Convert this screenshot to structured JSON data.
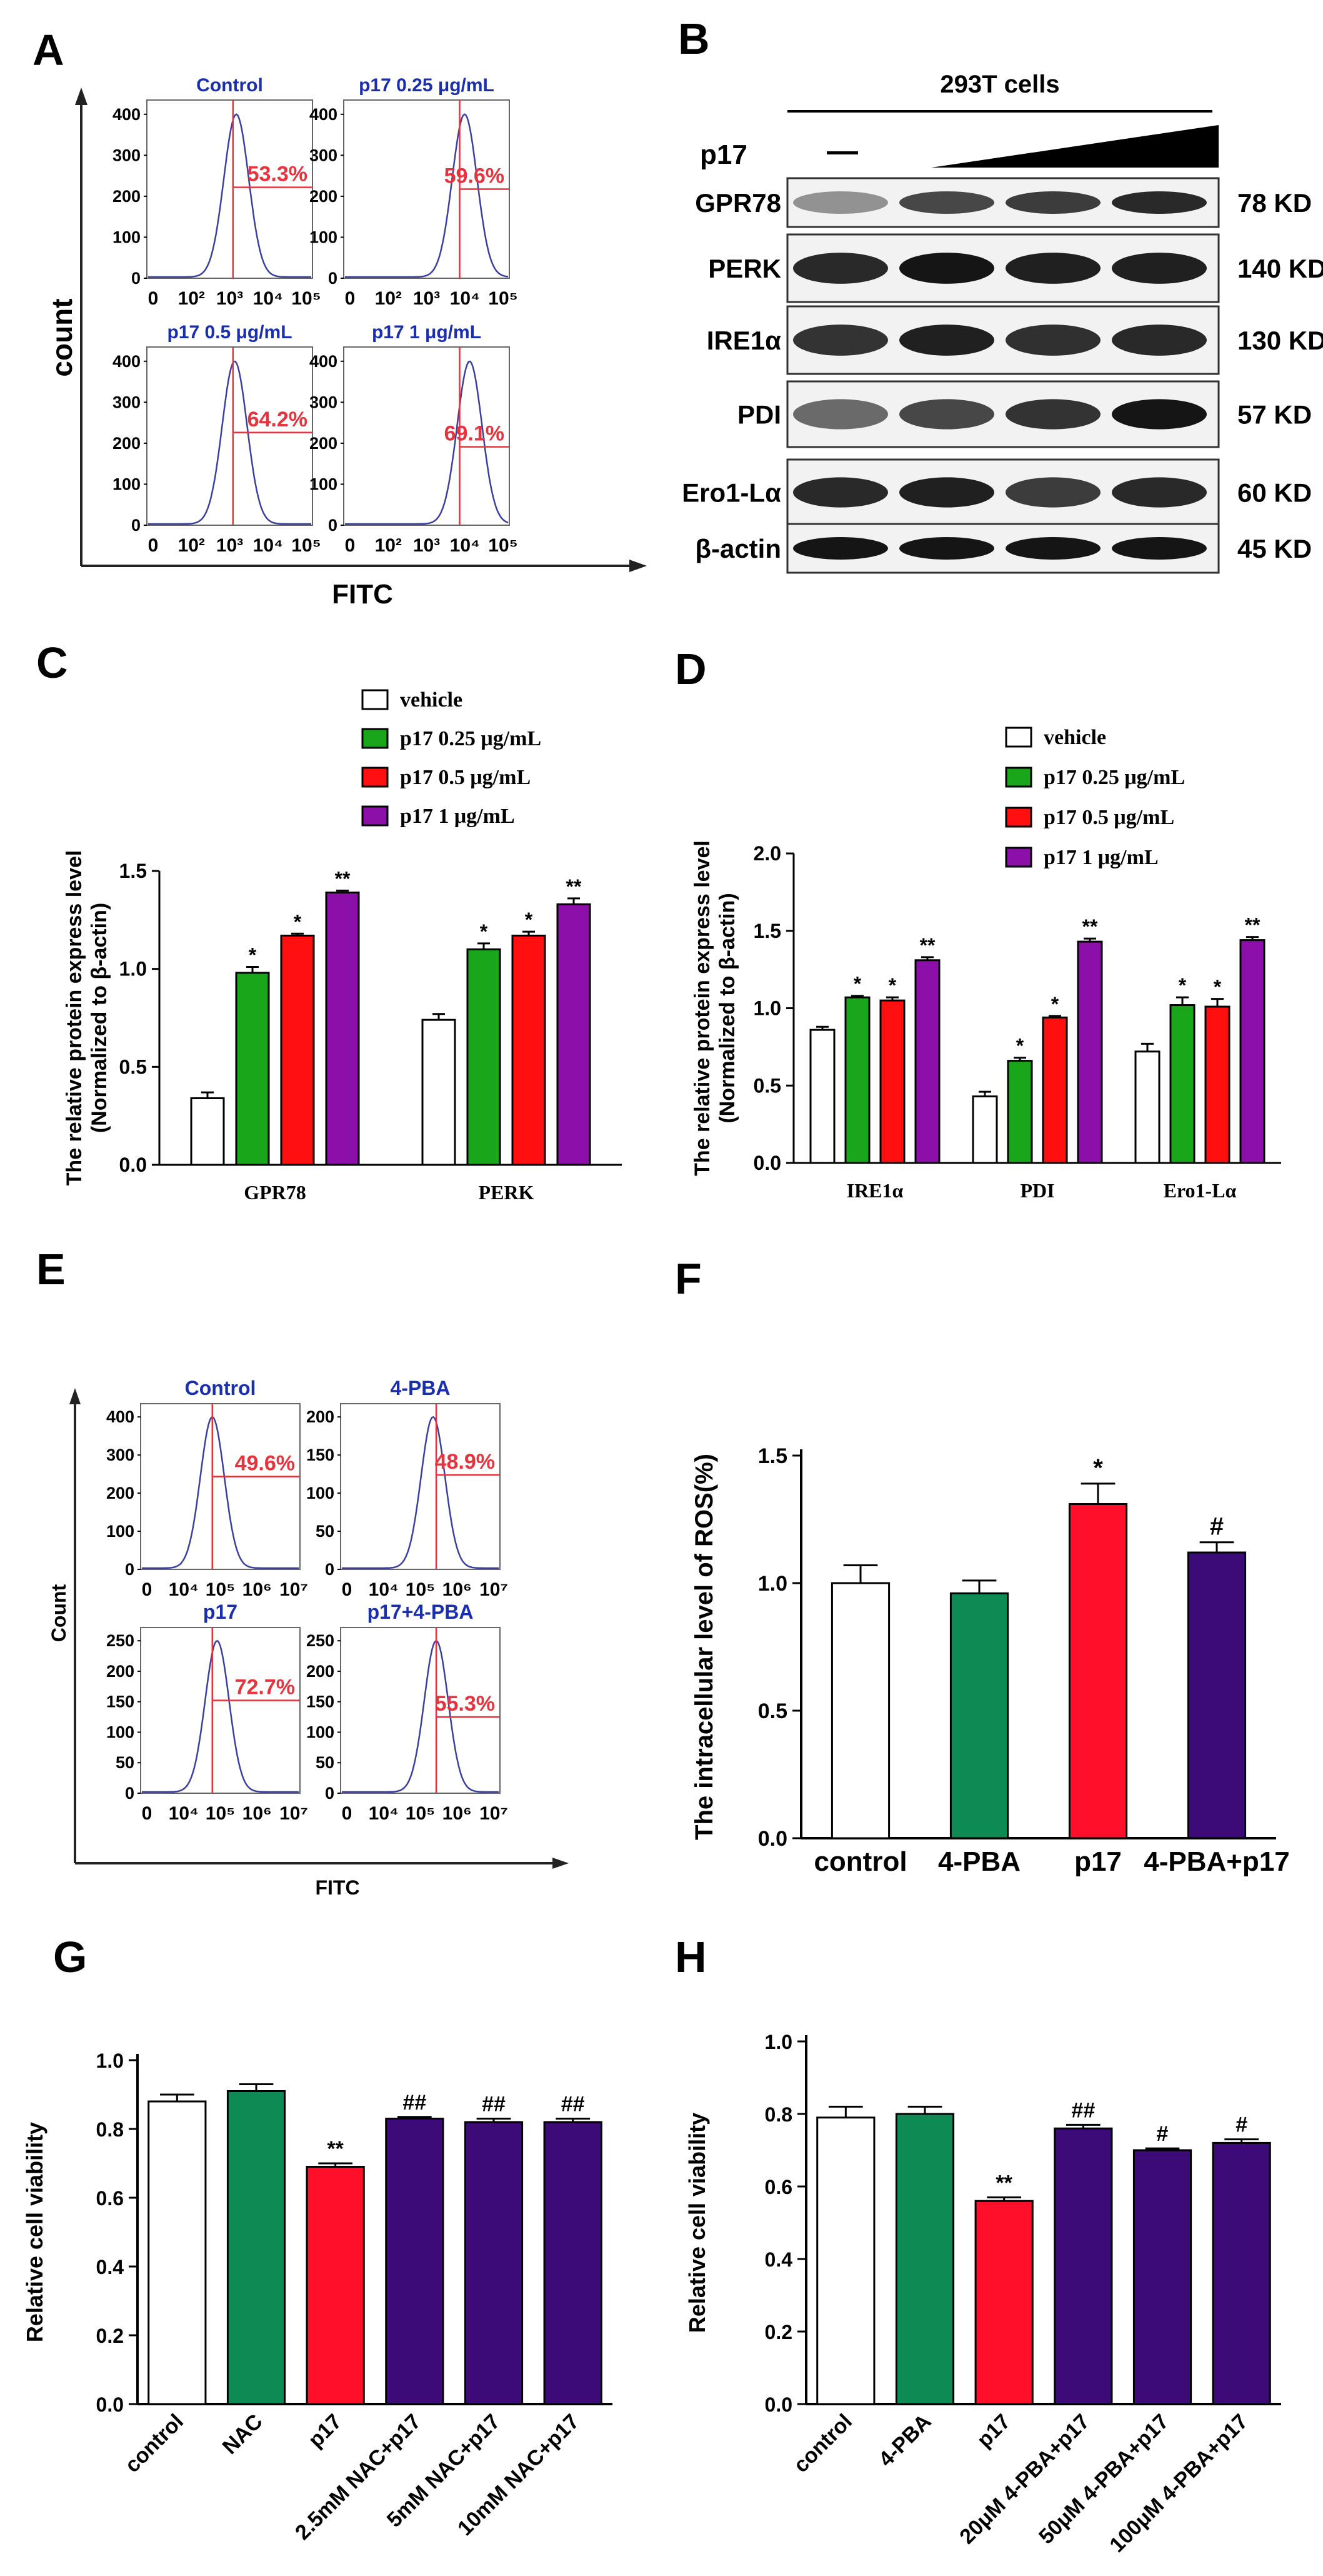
{
  "panel_labels": {
    "A": "A",
    "B": "B",
    "C": "C",
    "D": "D",
    "E": "E",
    "F": "F",
    "G": "G",
    "H": "H"
  },
  "panel_a": {
    "y_label": "count",
    "x_label": "FITC",
    "x_ticks": [
      "0",
      "10²",
      "10³",
      "10⁴",
      "10⁵"
    ],
    "y_ticks": [
      "0",
      "100",
      "200",
      "300",
      "400"
    ],
    "subplots": [
      {
        "title": "Control",
        "percent": "53.3%"
      },
      {
        "title": "p17 0.25 μg/mL",
        "percent": "59.6%"
      },
      {
        "title": "p17 0.5 μg/mL",
        "percent": "64.2%"
      },
      {
        "title": "p17 1 μg/mL",
        "percent": "69.1%"
      }
    ]
  },
  "panel_b": {
    "cell_line": "293T cells",
    "treatment_label": "p17",
    "untreated_mark": "—",
    "rows": [
      {
        "protein": "GPR78",
        "size": "78 KD"
      },
      {
        "protein": "PERK",
        "size": "140 KD"
      },
      {
        "protein": "IRE1α",
        "size": "130 KD"
      },
      {
        "protein": "PDI",
        "size": "57 KD"
      },
      {
        "protein": "Ero1-Lα",
        "size": "60 KD"
      },
      {
        "protein": "β-actin",
        "size": "45 KD"
      }
    ]
  },
  "panel_e": {
    "y_label": "Count",
    "x_label": "FITC",
    "x_ticks": [
      "0",
      "10⁴",
      "10⁵",
      "10⁶",
      "10⁷"
    ],
    "subplots": [
      {
        "title": "Control",
        "percent": "49.6%",
        "y_ticks": [
          "0",
          "100",
          "200",
          "300",
          "400"
        ],
        "ymax": 400
      },
      {
        "title": "4-PBA",
        "percent": "48.9%",
        "y_ticks": [
          "0",
          "50",
          "100",
          "150",
          "200"
        ],
        "ymax": 200
      },
      {
        "title": "p17",
        "percent": "72.7%",
        "y_ticks": [
          "0",
          "50",
          "100",
          "150",
          "200",
          "250"
        ],
        "ymax": 250
      },
      {
        "title": "p17+4-PBA",
        "percent": "55.3%",
        "y_ticks": [
          "0",
          "50",
          "100",
          "150",
          "200",
          "250"
        ],
        "ymax": 250
      }
    ]
  },
  "chart_data": [
    {
      "panel": "C",
      "type": "bar",
      "ylabel": "The relative protein express level (Normalized to β-actin)",
      "ylim": [
        0,
        1.5
      ],
      "yticks": [
        "0.0",
        "0.5",
        "1.0",
        "1.5"
      ],
      "categories": [
        "GPR78",
        "PERK"
      ],
      "series": [
        {
          "name": "vehicle",
          "values": [
            0.34,
            0.74
          ],
          "errors": [
            0.03,
            0.03
          ],
          "sig": [
            "",
            ""
          ]
        },
        {
          "name": "p17 0.25 μg/mL",
          "values": [
            0.98,
            1.1
          ],
          "errors": [
            0.03,
            0.03
          ],
          "sig": [
            "*",
            "*"
          ]
        },
        {
          "name": "p17 0.5 μg/mL",
          "values": [
            1.17,
            1.17
          ],
          "errors": [
            0.01,
            0.02
          ],
          "sig": [
            "*",
            "*"
          ]
        },
        {
          "name": "p17 1 μg/mL",
          "values": [
            1.39,
            1.33
          ],
          "errors": [
            0.01,
            0.03
          ],
          "sig": [
            "**",
            "**"
          ]
        }
      ]
    },
    {
      "panel": "D",
      "type": "bar",
      "ylabel": "The relative protein express level (Normalized to β-actin)",
      "ylim": [
        0,
        2.0
      ],
      "yticks": [
        "0.0",
        "0.5",
        "1.0",
        "1.5",
        "2.0"
      ],
      "categories": [
        "IRE1α",
        "PDI",
        "Ero1-Lα"
      ],
      "series": [
        {
          "name": "vehicle",
          "values": [
            0.86,
            0.43,
            0.72
          ],
          "errors": [
            0.02,
            0.03,
            0.05
          ],
          "sig": [
            "",
            "",
            ""
          ]
        },
        {
          "name": "p17 0.25 μg/mL",
          "values": [
            1.07,
            0.66,
            1.02
          ],
          "errors": [
            0.01,
            0.02,
            0.05
          ],
          "sig": [
            "*",
            "*",
            "*"
          ]
        },
        {
          "name": "p17 0.5 μg/mL",
          "values": [
            1.05,
            0.94,
            1.01
          ],
          "errors": [
            0.02,
            0.01,
            0.05
          ],
          "sig": [
            "*",
            "*",
            "*"
          ]
        },
        {
          "name": "p17 1 μg/mL",
          "values": [
            1.31,
            1.43,
            1.44
          ],
          "errors": [
            0.02,
            0.02,
            0.02
          ],
          "sig": [
            "**",
            "**",
            "**"
          ]
        }
      ]
    },
    {
      "panel": "F",
      "type": "bar",
      "ylabel": "The intracellular level of ROS(%)",
      "ylim": [
        0,
        1.5
      ],
      "yticks": [
        "0.0",
        "0.5",
        "1.0",
        "1.5"
      ],
      "categories": [
        "control",
        "4-PBA",
        "p17",
        "4-PBA+p17"
      ],
      "values": [
        1.0,
        0.96,
        1.31,
        1.12
      ],
      "errors": [
        0.07,
        0.05,
        0.08,
        0.04
      ],
      "sig": [
        "",
        "",
        "*",
        "#"
      ],
      "colors": [
        "#ffffff",
        "#0e8a55",
        "#ff0f2a",
        "#3d0b78"
      ]
    },
    {
      "panel": "G",
      "type": "bar",
      "ylabel": "Relative cell viability",
      "ylim": [
        0,
        1.0
      ],
      "yticks": [
        "0.0",
        "0.2",
        "0.4",
        "0.6",
        "0.8",
        "1.0"
      ],
      "categories": [
        "control",
        "NAC",
        "p17",
        "2.5mM NAC+p17",
        "5mM NAC+p17",
        "10mM NAC+p17"
      ],
      "values": [
        0.88,
        0.91,
        0.69,
        0.83,
        0.82,
        0.82
      ],
      "errors": [
        0.02,
        0.02,
        0.01,
        0.005,
        0.01,
        0.01
      ],
      "sig": [
        "",
        "",
        "**",
        "##",
        "##",
        "##"
      ],
      "colors": [
        "#ffffff",
        "#0e8a55",
        "#ff0f2a",
        "#3d0b78",
        "#3d0b78",
        "#3d0b78"
      ]
    },
    {
      "panel": "H",
      "type": "bar",
      "ylabel": "Relative cell viability",
      "ylim": [
        0,
        1.0
      ],
      "yticks": [
        "0.0",
        "0.2",
        "0.4",
        "0.6",
        "0.8",
        "1.0"
      ],
      "categories": [
        "control",
        "4-PBA",
        "p17",
        "20μM 4-PBA+p17",
        "50μM 4-PBA+p17",
        "100μM 4-PBA+p17"
      ],
      "values": [
        0.79,
        0.8,
        0.56,
        0.76,
        0.7,
        0.72
      ],
      "errors": [
        0.03,
        0.02,
        0.01,
        0.01,
        0.005,
        0.01
      ],
      "sig": [
        "",
        "",
        "**",
        "##",
        "#",
        "#"
      ],
      "colors": [
        "#ffffff",
        "#0e8a55",
        "#ff0f2a",
        "#3d0b78",
        "#3d0b78",
        "#3d0b78"
      ]
    }
  ],
  "colors": {
    "vehicle": "#ffffff",
    "low": "#1aa61a",
    "mid": "#ff0f0f",
    "high": "#8b0fa8",
    "flow_curve": "#3b3fa0",
    "gate": "#e8323c",
    "percent_text": "#e8323c",
    "flow_title": "#1a2fb0"
  }
}
